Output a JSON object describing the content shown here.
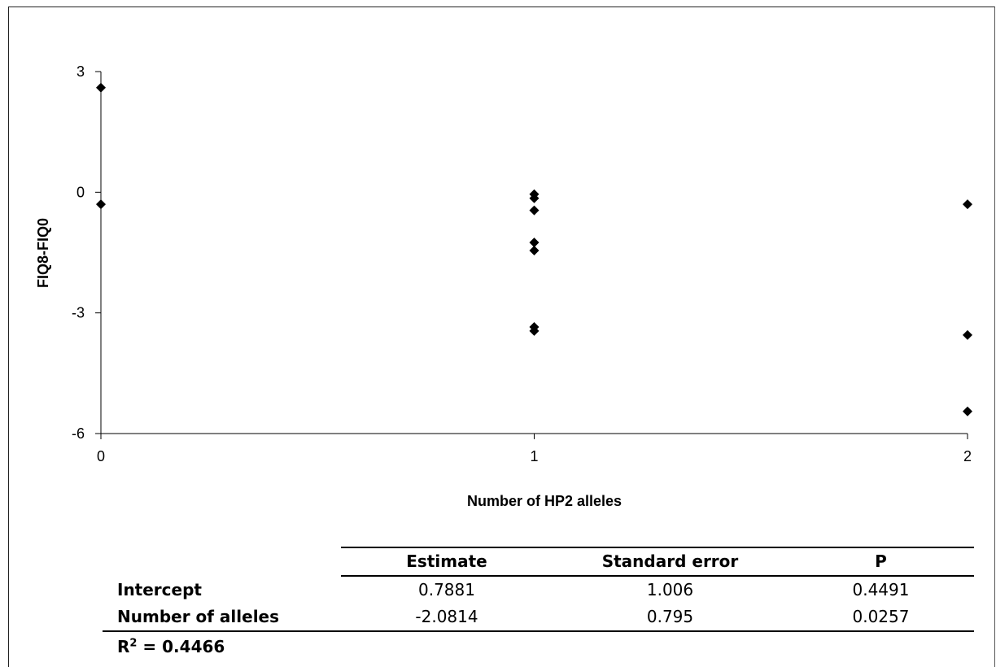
{
  "chart_data": {
    "type": "scatter",
    "xlabel": "Number of HP2 alleles",
    "ylabel": "FIQ8-FIQ0",
    "xlim": [
      0,
      2
    ],
    "ylim": [
      -6,
      3
    ],
    "xticks": [
      0,
      1,
      2
    ],
    "yticks": [
      3,
      0,
      -3,
      -6
    ],
    "grid": false,
    "marker": "diamond",
    "marker_color": "#000000",
    "points": [
      {
        "x": 0,
        "y": 2.6
      },
      {
        "x": 0,
        "y": -0.3
      },
      {
        "x": 1,
        "y": -0.05
      },
      {
        "x": 1,
        "y": -0.15
      },
      {
        "x": 1,
        "y": -0.45
      },
      {
        "x": 1,
        "y": -1.25
      },
      {
        "x": 1,
        "y": -1.45
      },
      {
        "x": 1,
        "y": -3.35
      },
      {
        "x": 1,
        "y": -3.45
      },
      {
        "x": 2,
        "y": -0.3
      },
      {
        "x": 2,
        "y": -3.55
      },
      {
        "x": 2,
        "y": -5.45
      }
    ]
  },
  "stats_table": {
    "headers": [
      "Estimate",
      "Standard error",
      "P"
    ],
    "rows": [
      {
        "label": "Intercept",
        "estimate": "0.7881",
        "standard_error": "1.006",
        "p": "0.4491"
      },
      {
        "label": "Number of alleles",
        "estimate": "-2.0814",
        "standard_error": "0.795",
        "p": "0.0257"
      }
    ]
  },
  "r_squared": {
    "prefix": "R",
    "superscript": "2",
    "suffix": " = 0.4466"
  }
}
